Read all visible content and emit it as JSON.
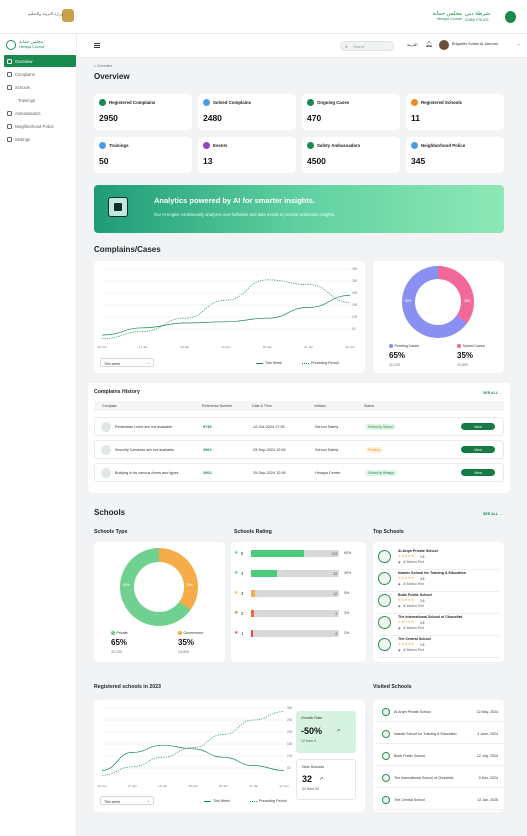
{
  "header": {
    "left_org": "وزارة التربية والتعليم",
    "right_logo_ar": "مجلس حماية",
    "right_logo_en": "Himaya Council",
    "right_logo2_ar": "شرطة دبي",
    "right_logo2_en": "DUBAI POLICE"
  },
  "sidebar": {
    "brand_ar": "مجلس حماية",
    "brand_en": "Himaya Council",
    "items": [
      {
        "label": "Overview"
      },
      {
        "label": "Complains"
      },
      {
        "label": "Schools"
      },
      {
        "label": "Trainings"
      },
      {
        "label": "Ambassadors"
      },
      {
        "label": "Neighborhood Police"
      },
      {
        "label": "Settings"
      }
    ]
  },
  "toolbar": {
    "search_placeholder": "Search",
    "lang": "العربية",
    "user": "Brigadier Sultan Al Jammal"
  },
  "breadcrumb": "Overview",
  "page_title": "Overview",
  "stats": [
    {
      "label": "Registered Complains",
      "value": "2950",
      "color": "#1a8a4f"
    },
    {
      "label": "Solved Complains",
      "value": "2480",
      "color": "#4a9ee8"
    },
    {
      "label": "Ongoing Cases",
      "value": "470",
      "color": "#1a8a4f"
    },
    {
      "label": "Registered Schools",
      "value": "11",
      "color": "#f08a24"
    },
    {
      "label": "Trainings",
      "value": "50",
      "color": "#4a9ee8"
    },
    {
      "label": "Events",
      "value": "13",
      "color": "#8e44c8"
    },
    {
      "label": "Safety Ambassadors",
      "value": "4500",
      "color": "#1a8a4f"
    },
    {
      "label": "Neighborhood Police",
      "value": "345",
      "color": "#4a9ee8"
    }
  ],
  "ai_banner": {
    "title": "Analytics powered by AI for smarter insights.",
    "subtitle": "Our AI engine continuously analyzes user behavior and data trends to provide actionable insights."
  },
  "complains_cases": {
    "title": "Complains/Cases",
    "period_select": "This week",
    "legend_this": "This Week",
    "legend_prev": "Preceding Period",
    "donut": {
      "pending_label": "Pending Cases",
      "pending_pct": "65%",
      "pending_count": "30,200",
      "solved_label": "Solved Cases",
      "solved_pct": "35%",
      "solved_count": "15,800",
      "slice_pending": "65%",
      "slice_solved": "35%"
    }
  },
  "history": {
    "title": "Complains History",
    "see_all": "SEE ALL",
    "columns": [
      "Complain",
      "Reference Number",
      "Date & Time",
      "Initiator",
      "Status"
    ],
    "rows": [
      {
        "complain": "Pedestrian Lines are not available",
        "ref": "5748",
        "date": "12-Oct-2024 17:53",
        "initiator": "School Safety",
        "status": "Solved by School",
        "action": "View"
      },
      {
        "complain": "Security Cameras are not available",
        "ref": "2963",
        "date": "29-Sep-2024 12:08",
        "initiator": "School Safety",
        "status": "Pending",
        "action": "View"
      },
      {
        "complain": "Bullying in its various forms and types",
        "ref": "2963",
        "date": "29-Sep-2024 12:08",
        "initiator": "Himaya Center",
        "status": "Solved by Himaya",
        "action": "View"
      }
    ]
  },
  "schools": {
    "title": "Schools",
    "see_all": "SEE ALL",
    "type_title": "Schools Type",
    "private_label": "Private",
    "private_pct": "65%",
    "private_count": "30,200",
    "gov_label": "Government",
    "gov_pct": "35%",
    "gov_count": "15,800",
    "slice_gov": "35%",
    "slice_private": "65%",
    "rating_title": "Schools Rating",
    "ratings": [
      {
        "star": "5",
        "count": "103",
        "pct": "60%",
        "fill": 0.6
      },
      {
        "star": "4",
        "count": "33",
        "pct": "30%",
        "fill": 0.3
      },
      {
        "star": "3",
        "count": "12",
        "pct": "5%",
        "fill": 0.05
      },
      {
        "star": "2",
        "count": "3",
        "pct": "3%",
        "fill": 0.03
      },
      {
        "star": "1",
        "count": "4",
        "pct": "2%",
        "fill": 0.02
      }
    ],
    "top_title": "Top Schools",
    "top": [
      {
        "name": "Al Arqm Private School",
        "rating": "4.8",
        "loc": "Al Barsha First"
      },
      {
        "name": "Islamic School for Training & Education",
        "rating": "4.8",
        "loc": "Al Barsha First"
      },
      {
        "name": "Buds Public School",
        "rating": "4.8",
        "loc": "Al Barsha First"
      },
      {
        "name": "The International School of Choueifat",
        "rating": "4.8",
        "loc": "Al Barsha First"
      },
      {
        "name": "The Central School",
        "rating": "4.8",
        "loc": "Al Barsha First"
      }
    ]
  },
  "registered": {
    "title": "Registered schools in 2023",
    "period_select": "This week",
    "legend_this": "This Week",
    "legend_prev": "Preceding Period",
    "growth_label": "Growth Rate",
    "growth_value": "-50%",
    "growth_sub": "12 from 0",
    "new_label": "New Schools",
    "new_value": "32",
    "new_sub": "32 from 30"
  },
  "visited": {
    "title": "Visited Schools",
    "rows": [
      {
        "name": "Al Arqm Private School",
        "date": "12 May, 2024"
      },
      {
        "name": "Islamic School for Training & Education",
        "date": "4 June, 2024"
      },
      {
        "name": "Buds Public School",
        "date": "12 July, 2024"
      },
      {
        "name": "The International School of Choueifat",
        "date": "9 Dec, 2024"
      },
      {
        "name": "The Central School",
        "date": "12 Jan, 2025"
      }
    ]
  },
  "chart_data": [
    {
      "type": "line",
      "x": [
        "16 Jan",
        "17 Jan",
        "18 Jan",
        "19 Jan",
        "20 Jan",
        "21 Jan",
        "22 Jan"
      ],
      "ylim": [
        0,
        300
      ],
      "yticks": [
        "300",
        "250",
        "200",
        "150",
        "100",
        "50"
      ],
      "series": [
        {
          "name": "This Week",
          "values": [
            25,
            55,
            75,
            80,
            95,
            140,
            190
          ]
        },
        {
          "name": "Preceding Period",
          "values": [
            10,
            40,
            95,
            170,
            255,
            235,
            160
          ]
        }
      ]
    },
    {
      "type": "line",
      "x": [
        "16 Jan",
        "17 Jan",
        "18 Jan",
        "19 Jan",
        "20 Jan",
        "21 Jan",
        "22 Jan"
      ],
      "ylim": [
        0,
        300
      ],
      "yticks": [
        "300",
        "250",
        "200",
        "150",
        "100",
        "50"
      ],
      "series": [
        {
          "name": "This Week",
          "values": [
            40,
            115,
            145,
            130,
            95,
            60,
            40
          ]
        },
        {
          "name": "Preceding Period",
          "values": [
            20,
            55,
            95,
            135,
            190,
            250,
            285
          ]
        }
      ]
    }
  ]
}
